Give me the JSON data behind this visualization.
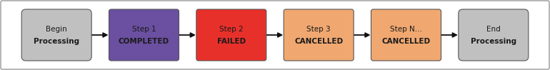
{
  "nodes": [
    {
      "label": "Begin\nProcessing",
      "color": "#c0c0c0",
      "text_color": "#1a1a1a",
      "shape": "round"
    },
    {
      "label": "Step 1\nCOMPLETED",
      "color": "#6b4fa0",
      "text_color": "#1a1a1a",
      "shape": "square"
    },
    {
      "label": "Step 2\nFAILED",
      "color": "#e8302a",
      "text_color": "#1a1a1a",
      "shape": "square"
    },
    {
      "label": "Step 3\nCANCELLED",
      "color": "#f0a870",
      "text_color": "#1a1a1a",
      "shape": "square"
    },
    {
      "label": "Step N...\nCANCELLED",
      "color": "#f0a870",
      "text_color": "#1a1a1a",
      "shape": "square"
    },
    {
      "label": "End\nProcessing",
      "color": "#c0c0c0",
      "text_color": "#1a1a1a",
      "shape": "round"
    }
  ],
  "background_color": "#ffffff",
  "border_color": "#999999",
  "arrow_color": "#111111",
  "fig_width": 7.7,
  "fig_height": 0.98,
  "dpi": 100
}
